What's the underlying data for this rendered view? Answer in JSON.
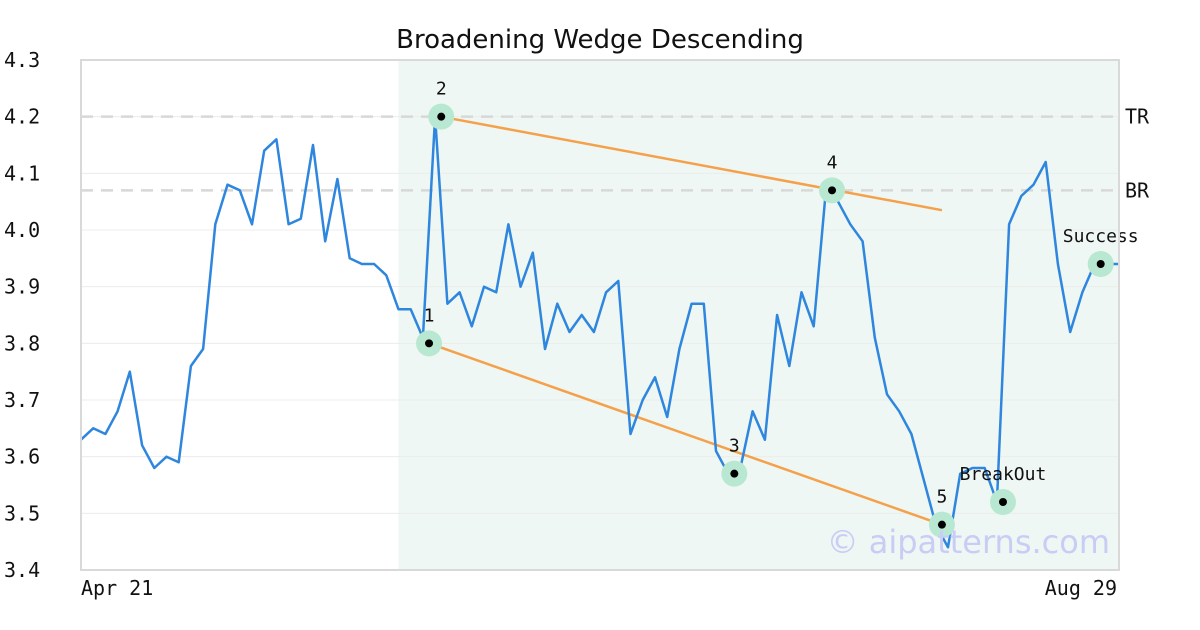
{
  "chart_data": {
    "type": "line",
    "title": "Broadening Wedge Descending",
    "x_start_label": "Apr 21",
    "x_end_label": "Aug 29",
    "ylim": [
      3.4,
      4.3
    ],
    "yticks": [
      "3.4",
      "3.5",
      "3.6",
      "3.7",
      "3.8",
      "3.9",
      "4.0",
      "4.1",
      "4.2",
      "4.3"
    ],
    "grid": "horizontal",
    "colors": {
      "price": "#2e86de",
      "trendline": "#f5a04a",
      "shade": "#eef7f3",
      "marker_halo": "#b9e8d2",
      "ref_line": "#d8d8d8",
      "watermark": "#c9cdf5",
      "axis": "#d9d9d9"
    },
    "series": [
      {
        "values": [
          3.63,
          3.65,
          3.64,
          3.68,
          3.75,
          3.62,
          3.58,
          3.6,
          3.59,
          3.76,
          3.79,
          4.01,
          4.08,
          4.07,
          4.01,
          4.14,
          4.16,
          4.01,
          4.02,
          4.15,
          3.98,
          4.09,
          3.95,
          3.94,
          3.94,
          3.92,
          3.86,
          3.86,
          3.81,
          4.2,
          3.87,
          3.89,
          3.83,
          3.9,
          3.89,
          4.01,
          3.9,
          3.96,
          3.79,
          3.87,
          3.82,
          3.85,
          3.82,
          3.89,
          3.91,
          3.64,
          3.7,
          3.74,
          3.67,
          3.79,
          3.87,
          3.87,
          3.61,
          3.57,
          3.58,
          3.68,
          3.63,
          3.85,
          3.76,
          3.89,
          3.83,
          4.07,
          4.05,
          4.01,
          3.98,
          3.81,
          3.71,
          3.68,
          3.64,
          3.56,
          3.48,
          3.44,
          3.57,
          3.58,
          3.58,
          3.52,
          4.01,
          4.06,
          4.08,
          4.12,
          3.94,
          3.82,
          3.89,
          3.94,
          3.94,
          3.94
        ]
      }
    ],
    "pattern_region": {
      "start_index": 26,
      "end_index": 85
    },
    "reference_lines": [
      {
        "label": "TR",
        "value": 4.2
      },
      {
        "label": "BR",
        "value": 4.07
      }
    ],
    "trendlines": [
      {
        "from": {
          "index": 28.5,
          "value": 3.8
        },
        "to": {
          "index": 70.5,
          "value": 3.48
        }
      },
      {
        "from": {
          "index": 29.5,
          "value": 4.2
        },
        "to": {
          "index": 70.5,
          "value": 4.035
        }
      }
    ],
    "points": [
      {
        "label": "1",
        "index": 28.5,
        "value": 3.8
      },
      {
        "label": "2",
        "index": 29.5,
        "value": 4.2
      },
      {
        "label": "3",
        "index": 53.5,
        "value": 3.57
      },
      {
        "label": "4",
        "index": 61.5,
        "value": 4.07
      },
      {
        "label": "5",
        "index": 70.5,
        "value": 3.48
      },
      {
        "label": "BreakOut",
        "index": 75.5,
        "value": 3.52
      },
      {
        "label": "Success",
        "index": 83.5,
        "value": 3.94
      }
    ]
  },
  "watermark": "© aipatterns.com"
}
